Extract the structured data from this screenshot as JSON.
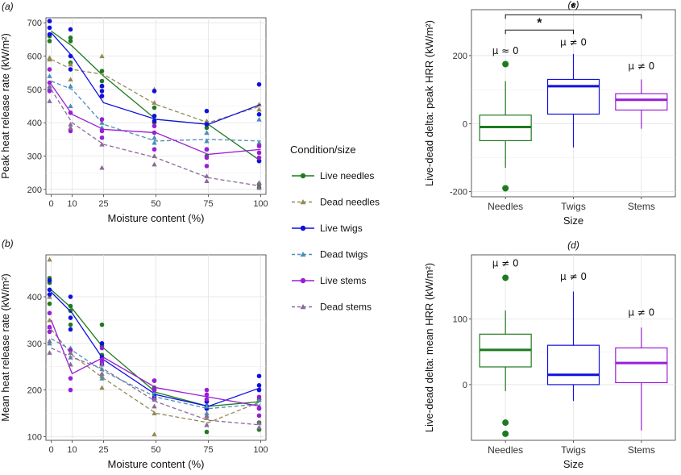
{
  "colors": {
    "live_needles": "#1f7a1f",
    "dead_needles": "#958a55",
    "live_twigs": "#1010e0",
    "dead_twigs": "#4a8fb8",
    "live_stems": "#9a1ed6",
    "dead_stems": "#8a6a9a"
  },
  "legend": {
    "title": "Condition/size",
    "items": [
      {
        "key": "live_needles",
        "label": "Live needles",
        "dash": false,
        "shape": "circle"
      },
      {
        "key": "dead_needles",
        "label": "Dead needles",
        "dash": true,
        "shape": "triangle"
      },
      {
        "key": "live_twigs",
        "label": "Live twigs",
        "dash": false,
        "shape": "circle"
      },
      {
        "key": "dead_twigs",
        "label": "Dead twigs",
        "dash": true,
        "shape": "triangle"
      },
      {
        "key": "live_stems",
        "label": "Live stems",
        "dash": false,
        "shape": "circle"
      },
      {
        "key": "dead_stems",
        "label": "Dead stems",
        "dash": true,
        "shape": "triangle"
      }
    ]
  },
  "chart_data": [
    {
      "id": "a",
      "panel_label": "(a)",
      "type": "line",
      "xlabel": "Moisture content (%)",
      "ylabel": "Peak heat release rate (kW/m²)",
      "x": [
        0,
        10,
        25,
        50,
        75,
        100
      ],
      "xticks": [
        "0",
        "10",
        "25",
        "50",
        "75",
        "100"
      ],
      "yticks": [
        200,
        300,
        400,
        500,
        600,
        700
      ],
      "ylim": [
        185,
        715
      ],
      "series": [
        {
          "key": "live_needles",
          "means": [
            675,
            630,
            540,
            410,
            395,
            285
          ],
          "points": [
            [
              0,
              705
            ],
            [
              0,
              660
            ],
            [
              0,
              645
            ],
            [
              10,
              655
            ],
            [
              10,
              645
            ],
            [
              10,
              580
            ],
            [
              25,
              555
            ],
            [
              25,
              525
            ],
            [
              25,
              510
            ],
            [
              50,
              445
            ],
            [
              50,
              420
            ],
            [
              50,
              400
            ],
            [
              75,
              400
            ],
            [
              75,
              385
            ],
            [
              75,
              300
            ],
            [
              100,
              285
            ],
            [
              100,
              215
            ],
            [
              100,
              205
            ]
          ]
        },
        {
          "key": "dead_needles",
          "means": [
            590,
            560,
            545,
            455,
            400,
            450
          ],
          "points": [
            [
              0,
              595
            ],
            [
              0,
              590
            ],
            [
              10,
              575
            ],
            [
              10,
              530
            ],
            [
              25,
              600
            ],
            [
              25,
              510
            ],
            [
              50,
              500
            ],
            [
              50,
              460
            ],
            [
              75,
              405
            ],
            [
              75,
              370
            ],
            [
              100,
              455
            ],
            [
              100,
              440
            ]
          ]
        },
        {
          "key": "live_twigs",
          "means": [
            670,
            600,
            460,
            410,
            395,
            455
          ],
          "points": [
            [
              0,
              705
            ],
            [
              0,
              685
            ],
            [
              0,
              665
            ],
            [
              10,
              680
            ],
            [
              10,
              600
            ],
            [
              10,
              560
            ],
            [
              25,
              510
            ],
            [
              25,
              495
            ],
            [
              25,
              480
            ],
            [
              50,
              495
            ],
            [
              50,
              420
            ],
            [
              50,
              405
            ],
            [
              75,
              435
            ],
            [
              75,
              395
            ],
            [
              75,
              320
            ],
            [
              100,
              515
            ],
            [
              100,
              425
            ],
            [
              100,
              285
            ]
          ]
        },
        {
          "key": "dead_twigs",
          "means": [
            525,
            500,
            395,
            345,
            350,
            345
          ],
          "points": [
            [
              0,
              540
            ],
            [
              0,
              505
            ],
            [
              10,
              510
            ],
            [
              10,
              450
            ],
            [
              25,
              400
            ],
            [
              25,
              385
            ],
            [
              50,
              355
            ],
            [
              50,
              340
            ],
            [
              75,
              370
            ],
            [
              75,
              345
            ],
            [
              100,
              410
            ],
            [
              100,
              340
            ]
          ]
        },
        {
          "key": "live_stems",
          "means": [
            515,
            425,
            380,
            370,
            305,
            320
          ],
          "points": [
            [
              0,
              560
            ],
            [
              0,
              520
            ],
            [
              0,
              495
            ],
            [
              10,
              430
            ],
            [
              10,
              375
            ],
            [
              25,
              410
            ],
            [
              25,
              375
            ],
            [
              25,
              355
            ],
            [
              50,
              390
            ],
            [
              50,
              370
            ],
            [
              50,
              320
            ],
            [
              75,
              320
            ],
            [
              75,
              295
            ],
            [
              75,
              270
            ],
            [
              100,
              330
            ],
            [
              100,
              310
            ],
            [
              100,
              295
            ]
          ]
        },
        {
          "key": "dead_stems",
          "means": [
            500,
            400,
            335,
            295,
            235,
            210
          ],
          "points": [
            [
              0,
              510
            ],
            [
              0,
              465
            ],
            [
              10,
              395
            ],
            [
              10,
              385
            ],
            [
              25,
              335
            ],
            [
              25,
              265
            ],
            [
              50,
              300
            ],
            [
              50,
              275
            ],
            [
              75,
              240
            ],
            [
              75,
              225
            ],
            [
              100,
              220
            ],
            [
              100,
              205
            ]
          ]
        }
      ]
    },
    {
      "id": "b",
      "panel_label": "(b)",
      "type": "line",
      "xlabel": "Moisture content (%)",
      "ylabel": "Mean heat release rate (kW/m²)",
      "x": [
        0,
        10,
        25,
        50,
        75,
        100
      ],
      "xticks": [
        "0",
        "10",
        "25",
        "50",
        "75",
        "100"
      ],
      "yticks": [
        100,
        200,
        300,
        400
      ],
      "ylim": [
        92,
        490
      ],
      "series": [
        {
          "key": "live_needles",
          "means": [
            415,
            375,
            290,
            195,
            165,
            175
          ],
          "points": [
            [
              0,
              440
            ],
            [
              0,
              430
            ],
            [
              0,
              385
            ],
            [
              10,
              380
            ],
            [
              10,
              370
            ],
            [
              10,
              340
            ],
            [
              25,
              340
            ],
            [
              25,
              295
            ],
            [
              25,
              275
            ],
            [
              50,
              205
            ],
            [
              50,
              190
            ],
            [
              50,
              180
            ],
            [
              75,
              175
            ],
            [
              75,
              160
            ],
            [
              75,
              110
            ],
            [
              100,
              180
            ],
            [
              100,
              130
            ],
            [
              100,
              115
            ]
          ]
        },
        {
          "key": "dead_needles",
          "means": [
            330,
            275,
            225,
            150,
            130,
            175
          ],
          "points": [
            [
              0,
              480
            ],
            [
              0,
              400
            ],
            [
              0,
              350
            ],
            [
              10,
              280
            ],
            [
              10,
              255
            ],
            [
              25,
              230
            ],
            [
              25,
              205
            ],
            [
              50,
              150
            ],
            [
              50,
              105
            ],
            [
              75,
              140
            ],
            [
              75,
              125
            ],
            [
              100,
              180
            ],
            [
              100,
              165
            ]
          ]
        },
        {
          "key": "live_twigs",
          "means": [
            410,
            365,
            265,
            190,
            165,
            205
          ],
          "points": [
            [
              0,
              435
            ],
            [
              0,
              415
            ],
            [
              0,
              405
            ],
            [
              10,
              400
            ],
            [
              10,
              355
            ],
            [
              10,
              330
            ],
            [
              25,
              300
            ],
            [
              25,
              270
            ],
            [
              25,
              255
            ],
            [
              50,
              220
            ],
            [
              50,
              200
            ],
            [
              50,
              185
            ],
            [
              75,
              175
            ],
            [
              75,
              165
            ],
            [
              75,
              160
            ],
            [
              100,
              230
            ],
            [
              100,
              210
            ],
            [
              100,
              200
            ]
          ]
        },
        {
          "key": "dead_twigs",
          "means": [
            310,
            285,
            240,
            185,
            160,
            170
          ],
          "points": [
            [
              0,
              335
            ],
            [
              0,
              300
            ],
            [
              10,
              290
            ],
            [
              10,
              270
            ],
            [
              25,
              245
            ],
            [
              25,
              225
            ],
            [
              50,
              195
            ],
            [
              50,
              180
            ],
            [
              75,
              165
            ],
            [
              75,
              150
            ],
            [
              100,
              180
            ],
            [
              100,
              165
            ]
          ]
        },
        {
          "key": "live_stems",
          "means": [
            350,
            235,
            270,
            205,
            185,
            165
          ],
          "points": [
            [
              0,
              365
            ],
            [
              0,
              335
            ],
            [
              0,
              325
            ],
            [
              10,
              285
            ],
            [
              10,
              225
            ],
            [
              10,
              200
            ],
            [
              25,
              290
            ],
            [
              25,
              265
            ],
            [
              25,
              260
            ],
            [
              50,
              220
            ],
            [
              50,
              200
            ],
            [
              50,
              180
            ],
            [
              75,
              200
            ],
            [
              75,
              190
            ],
            [
              75,
              180
            ],
            [
              100,
              185
            ],
            [
              100,
              160
            ],
            [
              100,
              145
            ]
          ]
        },
        {
          "key": "dead_stems",
          "means": [
            290,
            270,
            245,
            175,
            135,
            125
          ],
          "points": [
            [
              0,
              305
            ],
            [
              0,
              280
            ],
            [
              10,
              280
            ],
            [
              10,
              255
            ],
            [
              25,
              255
            ],
            [
              25,
              235
            ],
            [
              50,
              180
            ],
            [
              50,
              165
            ],
            [
              75,
              145
            ],
            [
              75,
              125
            ],
            [
              100,
              130
            ],
            [
              100,
              120
            ]
          ]
        }
      ]
    },
    {
      "id": "c",
      "panel_label": "(c)",
      "type": "box",
      "xlabel": "Size",
      "ylabel": "Live-dead delta: peak HRR (kW/m²)",
      "categories": [
        "Needles",
        "Twigs",
        "Stems"
      ],
      "yticks": [
        -200,
        0,
        200
      ],
      "ylim": [
        -215,
        335
      ],
      "boxes": [
        {
          "key": "live_needles",
          "min": -130,
          "q1": -50,
          "median": -10,
          "q3": 25,
          "max": 125,
          "outliers": [
            175,
            -190
          ],
          "annotation": "μ ≈ 0",
          "ann_y": 205
        },
        {
          "key": "live_twigs",
          "min": -70,
          "q1": 28,
          "median": 110,
          "q3": 130,
          "max": 205,
          "outliers": [],
          "annotation": "μ ≠ 0",
          "ann_y": 230
        },
        {
          "key": "live_stems",
          "min": -15,
          "q1": 40,
          "median": 70,
          "q3": 88,
          "max": 130,
          "outliers": [],
          "annotation": "μ ≠ 0",
          "ann_y": 160
        }
      ],
      "significance": [
        {
          "from": 0,
          "to": 2,
          "label": "*",
          "y": 320
        },
        {
          "from": 0,
          "to": 1,
          "label": "*",
          "y": 275
        }
      ]
    },
    {
      "id": "d",
      "panel_label": "(d)",
      "type": "box",
      "xlabel": "Size",
      "ylabel": "Live-dead delta: mean HRR (kW/m²)",
      "categories": [
        "Needles",
        "Twigs",
        "Stems"
      ],
      "yticks": [
        0,
        100
      ],
      "ylim": [
        -85,
        198
      ],
      "boxes": [
        {
          "key": "live_needles",
          "min": -10,
          "q1": 27,
          "median": 53,
          "q3": 77,
          "max": 113,
          "outliers": [
            163,
            -58,
            -75
          ],
          "annotation": "μ ≠ 0",
          "ann_y": 180
        },
        {
          "key": "live_twigs",
          "min": -25,
          "q1": 0,
          "median": 15,
          "q3": 60,
          "max": 142,
          "outliers": [],
          "annotation": "μ ≠ 0",
          "ann_y": 160
        },
        {
          "key": "live_stems",
          "min": -70,
          "q1": 3,
          "median": 33,
          "q3": 56,
          "max": 87,
          "outliers": [],
          "annotation": "μ ≠ 0",
          "ann_y": 105
        }
      ]
    }
  ]
}
